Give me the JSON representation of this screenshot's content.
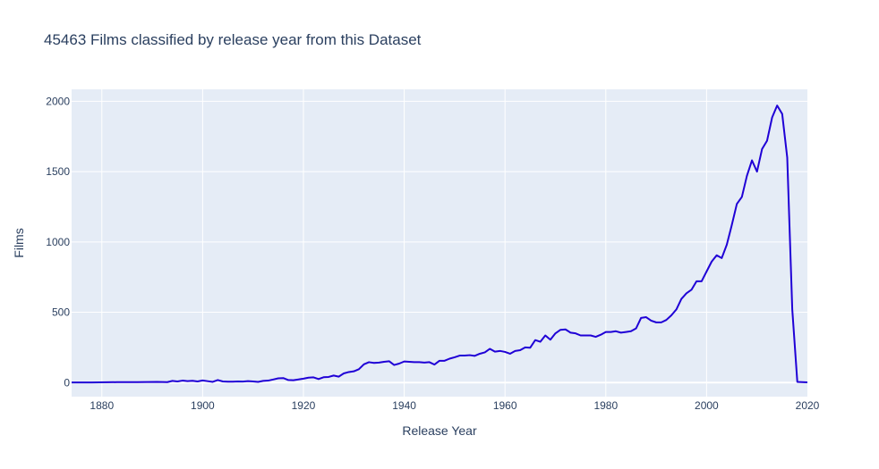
{
  "chart_data": {
    "type": "line",
    "title": "45463 Films classified by release year from this Dataset",
    "xlabel": "Release Year",
    "ylabel": "Films",
    "xlim": [
      1874,
      2020
    ],
    "ylim": [
      -100,
      2085
    ],
    "x_ticks": [
      1880,
      1900,
      1920,
      1940,
      1960,
      1980,
      2000,
      2020
    ],
    "y_ticks": [
      0,
      500,
      1000,
      1500,
      2000
    ],
    "grid": true,
    "legend": "none",
    "colors": {
      "line": "#1f00d6",
      "plot_bg": "#e5ecf6",
      "paper_bg": "#ffffff"
    },
    "series": [
      {
        "x": [
          1874,
          1878,
          1883,
          1887,
          1891,
          1893,
          1894,
          1895,
          1896,
          1897,
          1898,
          1899,
          1900,
          1901,
          1902,
          1903,
          1904,
          1905,
          1906,
          1907,
          1908,
          1909,
          1910,
          1911,
          1912,
          1913,
          1914,
          1915,
          1916,
          1917,
          1918,
          1919,
          1920,
          1921,
          1922,
          1923,
          1924,
          1925,
          1926,
          1927,
          1928,
          1929,
          1930,
          1931,
          1932,
          1933,
          1934,
          1935,
          1936,
          1937,
          1938,
          1939,
          1940,
          1941,
          1942,
          1943,
          1944,
          1945,
          1946,
          1947,
          1948,
          1949,
          1950,
          1951,
          1952,
          1953,
          1954,
          1955,
          1956,
          1957,
          1958,
          1959,
          1960,
          1961,
          1962,
          1963,
          1964,
          1965,
          1966,
          1967,
          1968,
          1969,
          1970,
          1971,
          1972,
          1973,
          1974,
          1975,
          1976,
          1977,
          1978,
          1979,
          1980,
          1981,
          1982,
          1983,
          1984,
          1985,
          1986,
          1987,
          1988,
          1989,
          1990,
          1991,
          1992,
          1993,
          1994,
          1995,
          1996,
          1997,
          1998,
          1999,
          2000,
          2001,
          2002,
          2003,
          2004,
          2005,
          2006,
          2007,
          2008,
          2009,
          2010,
          2011,
          2012,
          2013,
          2014,
          2015,
          2016,
          2017,
          2018,
          2020
        ],
        "y": [
          1,
          1,
          3,
          3,
          5,
          3,
          12,
          8,
          14,
          10,
          13,
          8,
          15,
          10,
          5,
          18,
          8,
          6,
          6,
          8,
          7,
          10,
          8,
          5,
          12,
          14,
          22,
          30,
          32,
          18,
          17,
          22,
          28,
          35,
          37,
          25,
          38,
          40,
          50,
          42,
          65,
          75,
          80,
          95,
          130,
          145,
          140,
          142,
          148,
          152,
          125,
          135,
          150,
          148,
          145,
          145,
          142,
          145,
          128,
          155,
          155,
          170,
          180,
          192,
          192,
          195,
          190,
          205,
          215,
          240,
          220,
          225,
          218,
          205,
          225,
          230,
          250,
          248,
          302,
          290,
          335,
          305,
          350,
          375,
          378,
          355,
          350,
          335,
          335,
          335,
          325,
          340,
          360,
          360,
          365,
          355,
          360,
          365,
          385,
          460,
          465,
          440,
          428,
          428,
          445,
          478,
          520,
          595,
          635,
          660,
          720,
          720,
          790,
          860,
          905,
          885,
          980,
          1120,
          1270,
          1320,
          1470,
          1580,
          1500,
          1660,
          1720,
          1885,
          1970,
          1910,
          1600,
          520,
          5,
          2
        ]
      }
    ]
  }
}
